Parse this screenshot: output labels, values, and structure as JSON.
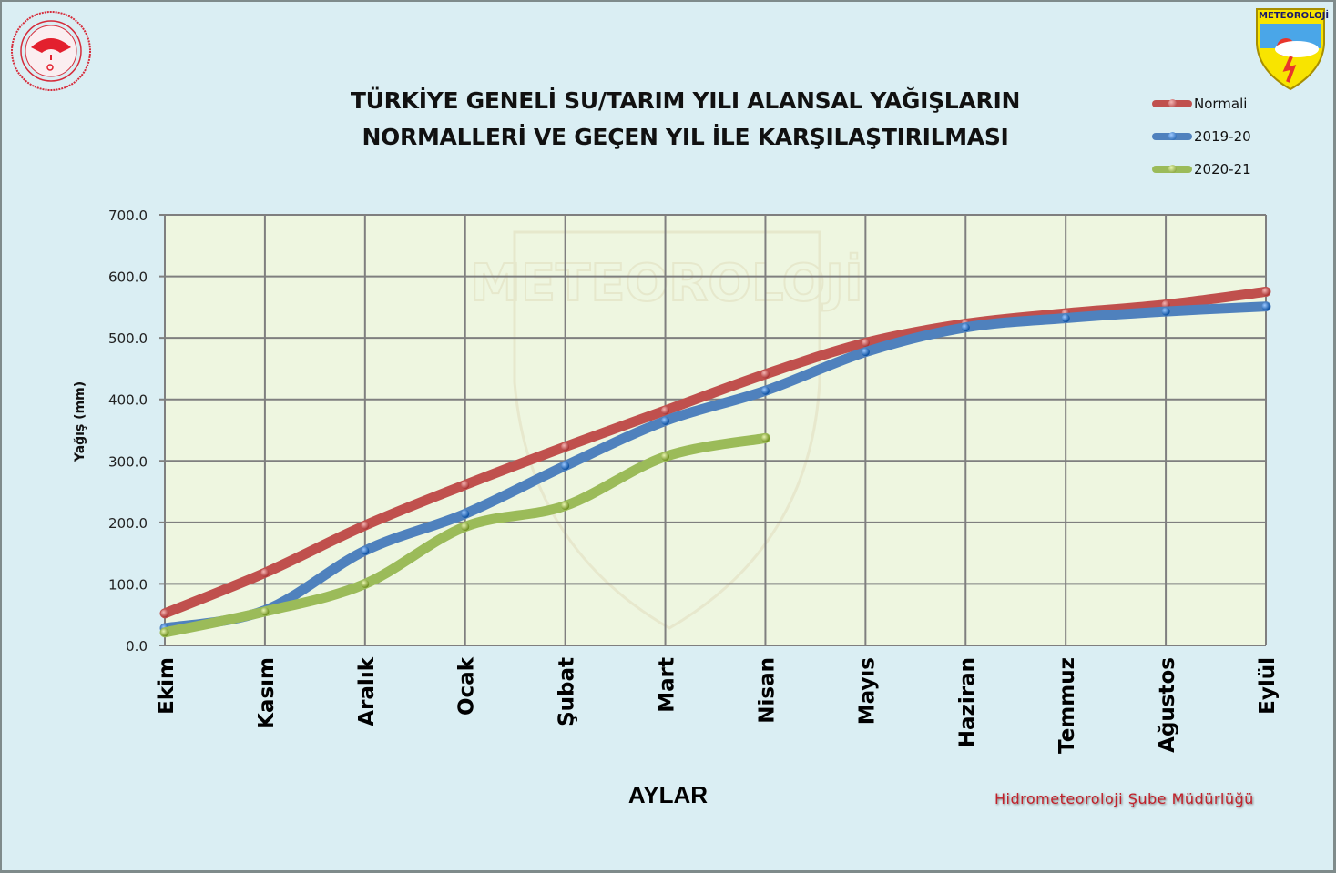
{
  "title": {
    "line1": "TÜRKİYE GENELİ  SU/TARIM YILI ALANSAL YAĞIŞLARIN",
    "line2": "NORMALLERİ VE GEÇEN YIL İLE KARŞILAŞTIRILMASI"
  },
  "logos": {
    "left": "ministry-seal-icon",
    "right_text": "METEOROLOJİ"
  },
  "legend": [
    {
      "name": "Normali",
      "color": "#c0504d"
    },
    {
      "name": "2019-20",
      "color": "#4f81bd"
    },
    {
      "name": "2020-21",
      "color": "#9bbb59"
    }
  ],
  "axis": {
    "ylabel": "Yağış (mm)",
    "xlabel": "AYLAR",
    "yticks": [
      "0.0",
      "100.0",
      "200.0",
      "300.0",
      "400.0",
      "500.0",
      "600.0",
      "700.0"
    ]
  },
  "credit": "Hidrometeoroloji Şube Müdürlüğü",
  "chart_data": {
    "type": "line",
    "title": "TÜRKİYE GENELİ SU/TARIM YILI ALANSAL YAĞIŞLARIN NORMALLERİ VE GEÇEN YIL İLE KARŞILAŞTIRILMASI",
    "xlabel": "AYLAR",
    "ylabel": "Yağış (mm)",
    "ylim": [
      0,
      700
    ],
    "grid": true,
    "legend_position": "top-right",
    "categories": [
      "Ekim",
      "Kasım",
      "Aralık",
      "Ocak",
      "Şubat",
      "Mart",
      "Nisan",
      "Mayıs",
      "Haziran",
      "Temmuz",
      "Ağustos",
      "Eylül"
    ],
    "series": [
      {
        "name": "Normali",
        "color": "#c0504d",
        "values": [
          52,
          118,
          195,
          261,
          323,
          382,
          441,
          492,
          523,
          540,
          554,
          575
        ]
      },
      {
        "name": "2019-20",
        "color": "#4f81bd",
        "values": [
          28,
          57,
          154,
          214,
          292,
          365,
          414,
          477,
          517,
          532,
          543,
          551
        ]
      },
      {
        "name": "2020-21",
        "color": "#9bbb59",
        "values": [
          21,
          55,
          100,
          193,
          227,
          307,
          337
        ]
      }
    ]
  }
}
